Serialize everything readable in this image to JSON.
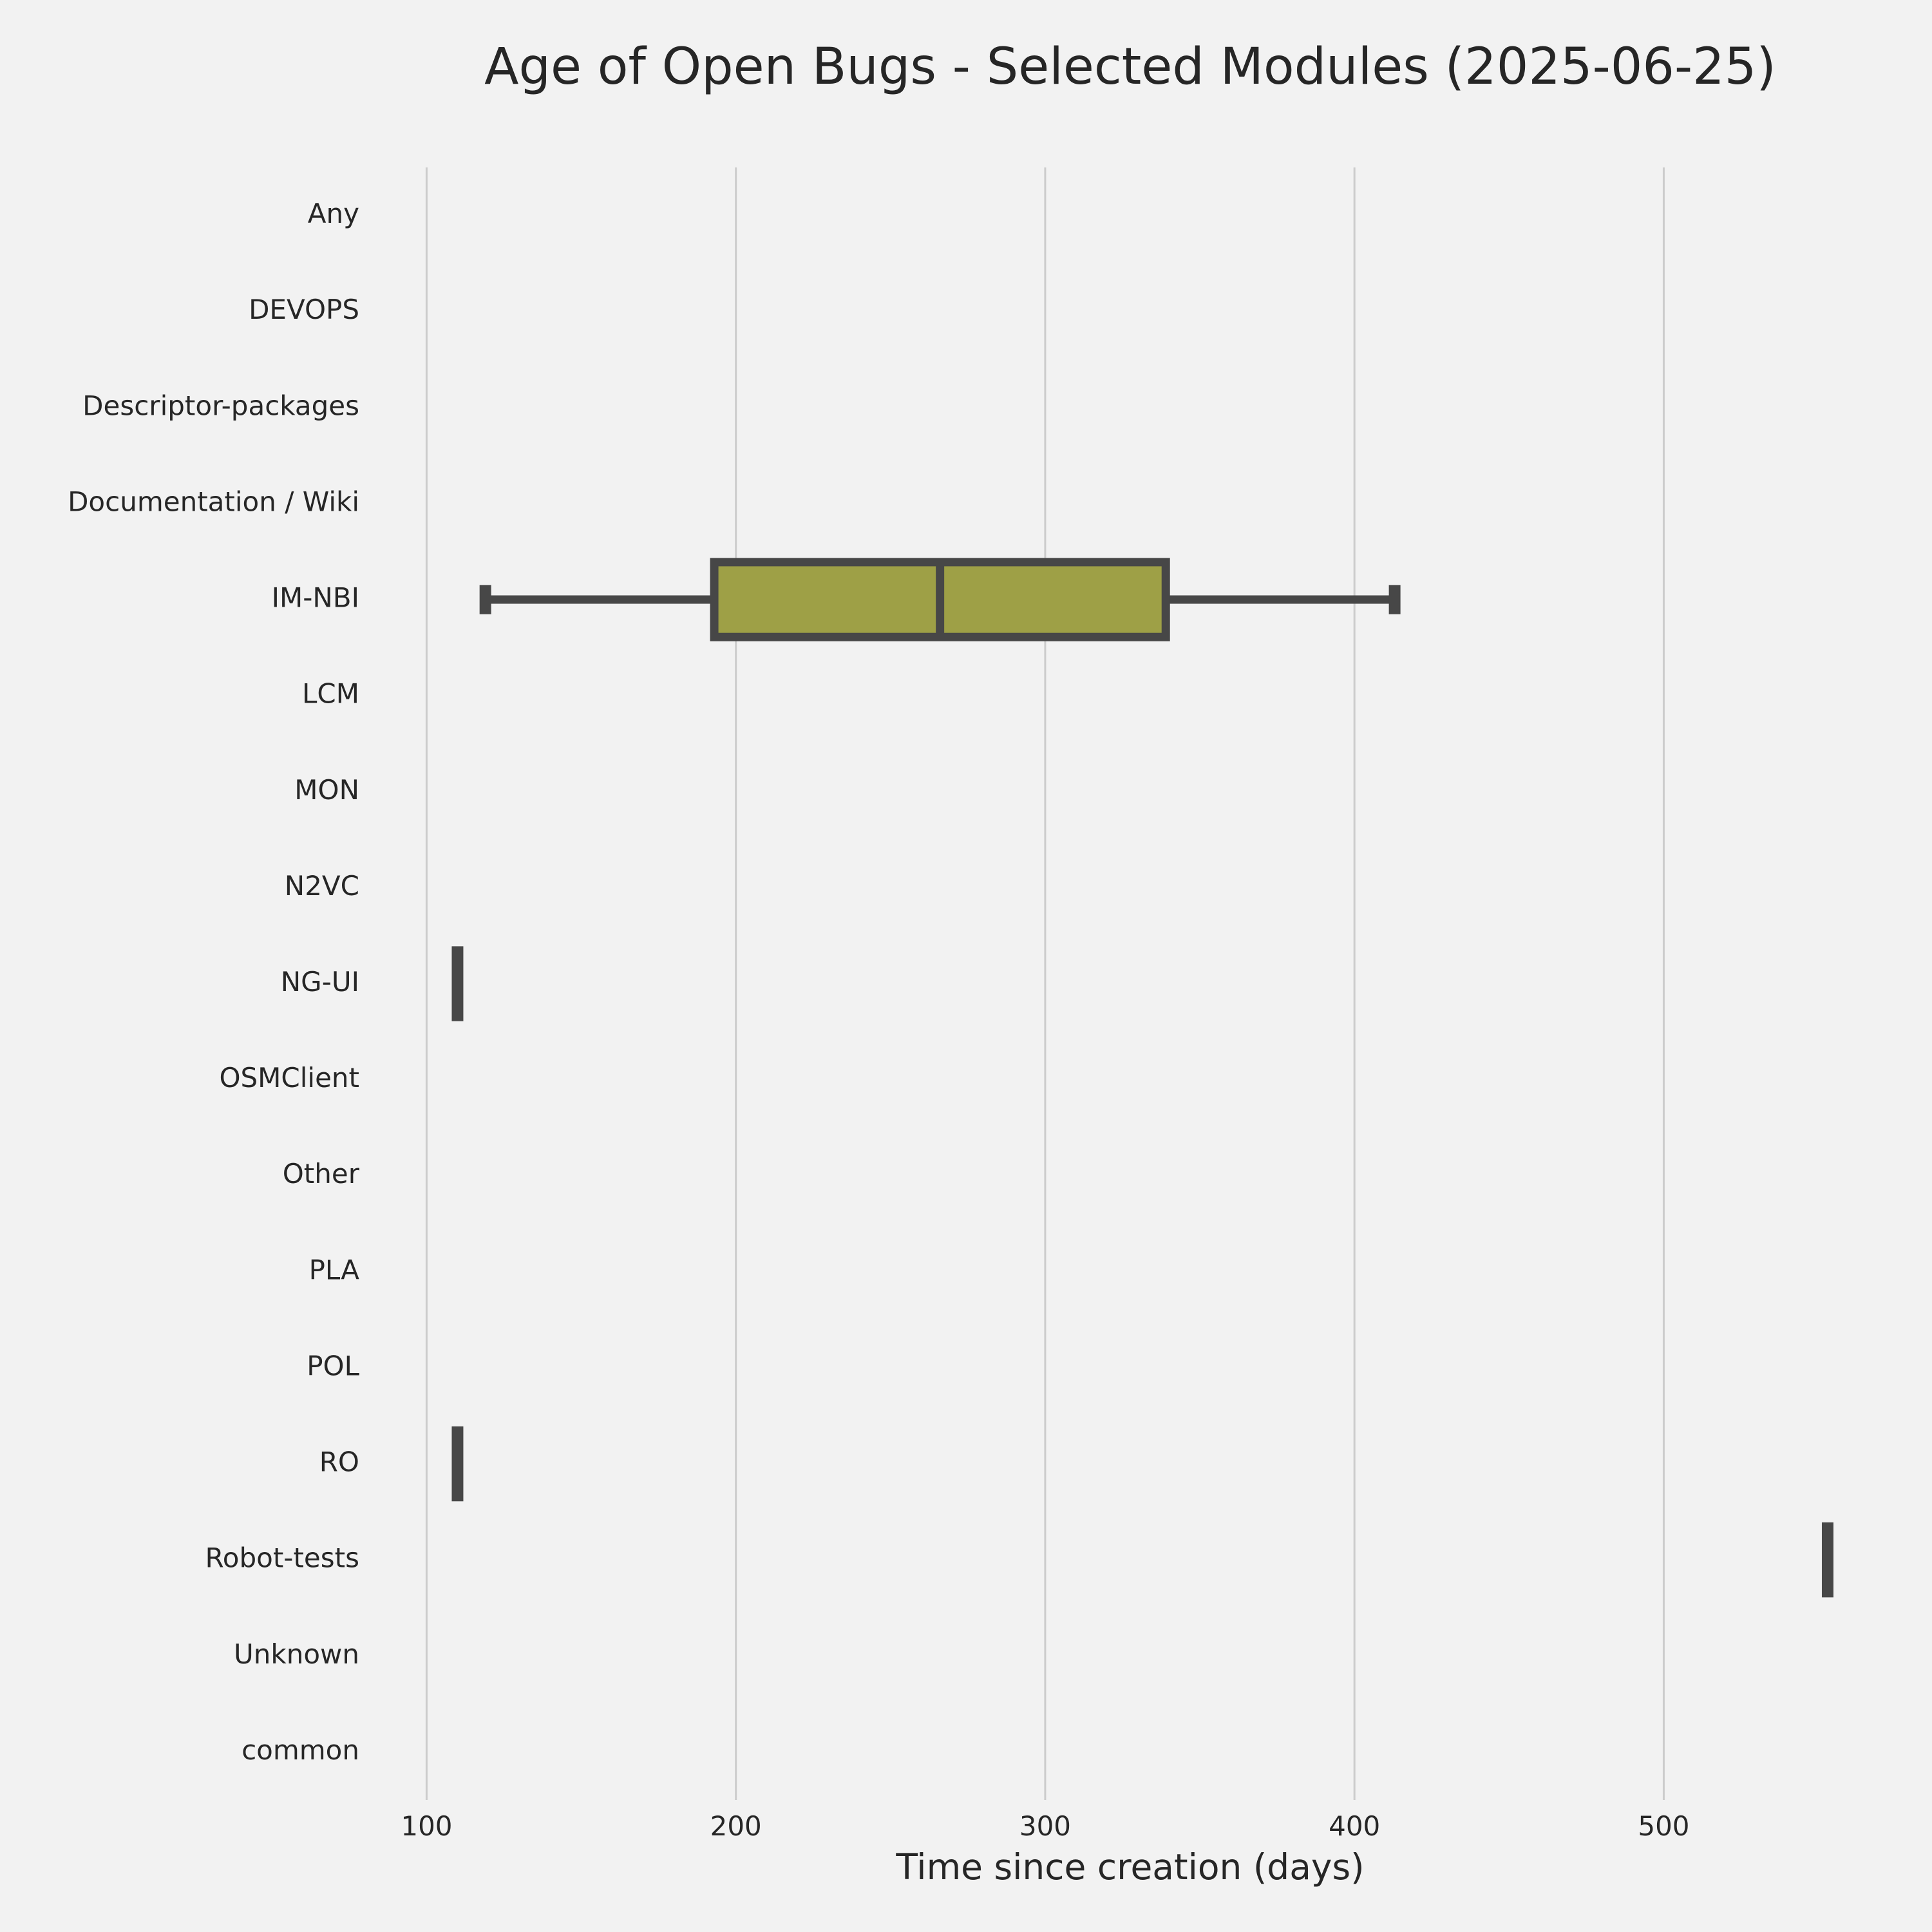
{
  "chart_data": {
    "type": "box",
    "orientation": "horizontal",
    "title": "Age of Open Bugs - Selected Modules (2025-06-25)",
    "xlabel": "Time since creation (days)",
    "ylabel": "",
    "xlim": [
      87,
      568
    ],
    "xticks": [
      100,
      200,
      300,
      400,
      500
    ],
    "grid": "vertical",
    "categories": [
      "Any",
      "DEVOPS",
      "Descriptor-packages",
      "Documentation / Wiki",
      "IM-NBI",
      "LCM",
      "MON",
      "N2VC",
      "NG-UI",
      "OSMClient",
      "Other",
      "PLA",
      "POL",
      "RO",
      "Robot-tests",
      "Unknown",
      "common"
    ],
    "boxes": [
      {
        "category": "IM-NBI",
        "whisker_low": 119,
        "q1": 193,
        "median": 266,
        "q3": 339,
        "whisker_high": 413
      },
      {
        "category": "NG-UI",
        "whisker_low": 110,
        "q1": 110,
        "median": 110,
        "q3": 110,
        "whisker_high": 110
      },
      {
        "category": "RO",
        "whisker_low": 110,
        "q1": 110,
        "median": 110,
        "q3": 110,
        "whisker_high": 110
      },
      {
        "category": "Robot-tests",
        "whisker_low": 553,
        "q1": 553,
        "median": 553,
        "q3": 553,
        "whisker_high": 553
      }
    ],
    "colors": {
      "background": "#f2f2f2",
      "box_fill": "#9ea046",
      "line": "#474747",
      "grid": "#cccccc",
      "text": "#262626"
    }
  }
}
